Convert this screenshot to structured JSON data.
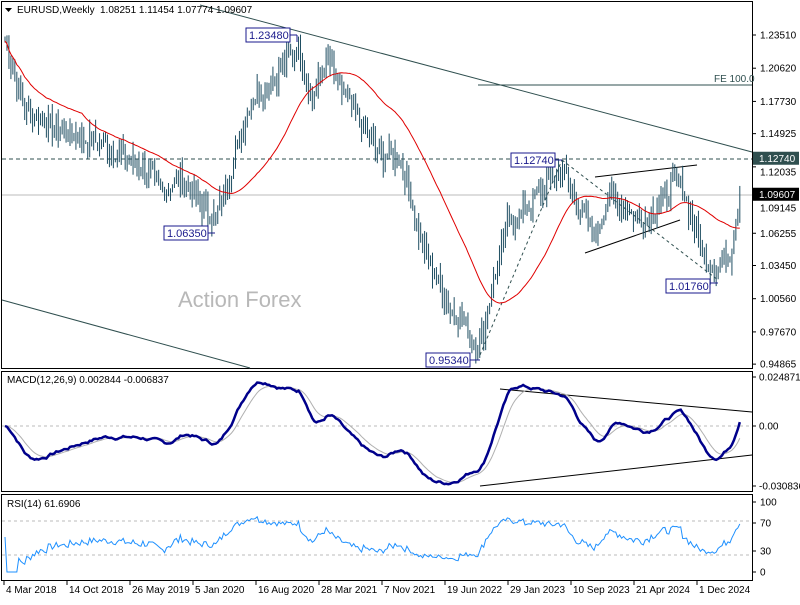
{
  "header": {
    "symbol_tf": "EURUSD,Weekly",
    "ohlc": "1.08251 1.11454 1.07774 1.09607"
  },
  "watermark": "Action Forex",
  "annotations": {
    "high_2021": "1.23480",
    "low_2020": "1.06350",
    "low_2022": "0.95340",
    "high_2023": "1.12740",
    "low_2025": "1.01760",
    "fe": "FE 100.0"
  },
  "colors": {
    "bars": "#1f4e62",
    "ma": "#e00000",
    "macd": "#00008b",
    "signal": "#b0b0b0",
    "rsi": "#1e90ff",
    "current_price_bg": "#000000",
    "level_bg": "#2f4f4f"
  },
  "chart_data": [
    {
      "type": "ohlc",
      "title": "EURUSD,Weekly",
      "price_axis_ticks": [
        "1.23510",
        "1.20620",
        "1.17730",
        "1.14925",
        "1.12035",
        "1.09145",
        "1.06255",
        "1.03450",
        "1.00560",
        "0.97670",
        "0.94865"
      ],
      "price_labels": {
        "level": "1.12740",
        "current": "1.09607"
      },
      "x_tick_labels": [
        "4 Mar 2018",
        "14 Oct 2018",
        "26 May 2019",
        "5 Jan 2020",
        "16 Aug 2020",
        "28 Mar 2021",
        "7 Nov 2021",
        "19 Jun 2022",
        "29 Jan 2023",
        "10 Sep 2023",
        "21 Apr 2024",
        "1 Dec 2024"
      ],
      "ylim": [
        0.94865,
        1.25
      ],
      "approx_close_keypoints": [
        [
          0,
          1.23
        ],
        [
          10,
          1.17
        ],
        [
          30,
          1.15
        ],
        [
          50,
          1.14
        ],
        [
          60,
          1.13
        ],
        [
          70,
          1.12
        ],
        [
          80,
          1.1
        ],
        [
          90,
          1.11
        ],
        [
          98,
          1.09
        ],
        [
          107,
          1.075
        ],
        [
          115,
          1.12
        ],
        [
          125,
          1.18
        ],
        [
          138,
          1.2
        ],
        [
          149,
          1.225
        ],
        [
          156,
          1.18
        ],
        [
          163,
          1.215
        ],
        [
          170,
          1.19
        ],
        [
          180,
          1.16
        ],
        [
          190,
          1.13
        ],
        [
          200,
          1.13
        ],
        [
          205,
          1.1
        ],
        [
          212,
          1.05
        ],
        [
          225,
          1.0
        ],
        [
          241,
          0.965
        ],
        [
          248,
          1.02
        ],
        [
          255,
          1.07
        ],
        [
          265,
          1.085
        ],
        [
          272,
          1.1
        ],
        [
          283,
          1.12
        ],
        [
          290,
          1.09
        ],
        [
          300,
          1.06
        ],
        [
          305,
          1.09
        ],
        [
          310,
          1.095
        ],
        [
          318,
          1.08
        ],
        [
          325,
          1.075
        ],
        [
          332,
          1.09
        ],
        [
          342,
          1.11
        ],
        [
          348,
          1.08
        ],
        [
          355,
          1.04
        ],
        [
          361,
          1.03
        ],
        [
          368,
          1.045
        ],
        [
          373,
          1.09607
        ]
      ],
      "moving_average": "red line"
    },
    {
      "type": "line",
      "title": "MACD(12,26,9) 0.002844 -0.006837",
      "y_ticks": [
        "0.024871",
        "0.00",
        "-0.030836"
      ],
      "series": [
        {
          "name": "MACD"
        },
        {
          "name": "Signal"
        }
      ]
    },
    {
      "type": "line",
      "title": "RSI(14) 61.6906",
      "y_ticks": [
        "100",
        "70",
        "30",
        "0"
      ],
      "levels": [
        70,
        30
      ]
    }
  ]
}
